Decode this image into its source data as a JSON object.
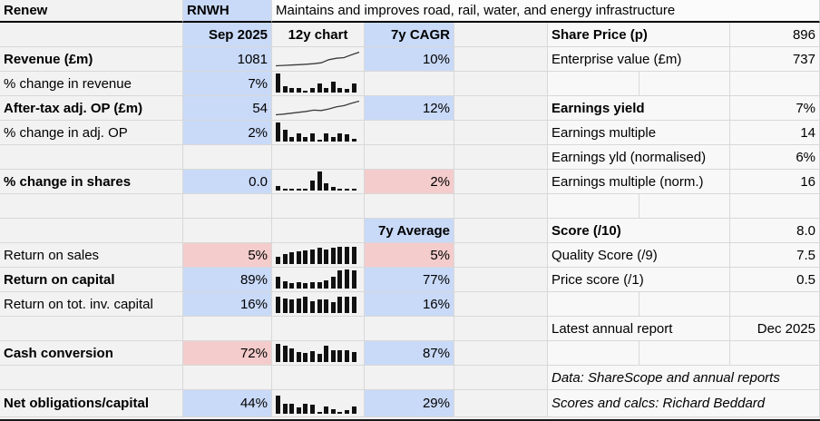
{
  "title_row": {
    "company": "Renew",
    "ticker": "RNWH",
    "description": "Maintains and improves road, rail, water, and energy infrastructure"
  },
  "headers": {
    "period": "Sep 2025",
    "chart_col": "12y chart",
    "cagr_col": "7y CAGR",
    "avg_col": "7y Average"
  },
  "metrics": [
    {
      "label": "Revenue (£m)",
      "value": "1081",
      "cagr": "10%"
    },
    {
      "label": "% change in revenue",
      "value": "7%",
      "cagr": ""
    },
    {
      "label": "After-tax adj. OP (£m)",
      "value": "54",
      "cagr": "12%"
    },
    {
      "label": "% change in adj. OP",
      "value": "2%",
      "cagr": ""
    },
    {
      "label": "% change in shares",
      "value": "0.0",
      "cagr": "2%"
    },
    {
      "label": "Return on sales",
      "value": "5%",
      "avg": "5%"
    },
    {
      "label": "Return on capital",
      "value": "89%",
      "avg": "77%"
    },
    {
      "label": "Return on tot. inv. capital",
      "value": "16%",
      "avg": "16%"
    },
    {
      "label": "Cash conversion",
      "value": "72%",
      "avg": "87%"
    },
    {
      "label": "Net obligations/capital",
      "value": "44%",
      "avg": "29%"
    }
  ],
  "right_panel": {
    "items": [
      {
        "label": "Share Price (p)",
        "value": "896"
      },
      {
        "label": "Enterprise value (£m)",
        "value": "737"
      },
      {
        "label": "Earnings yield",
        "value": "7%"
      },
      {
        "label": "Earnings multiple",
        "value": "14"
      },
      {
        "label": "Earnings yld (normalised)",
        "value": "6%"
      },
      {
        "label": "Earnings multiple (norm.)",
        "value": "16"
      },
      {
        "label": "Score (/10)",
        "value": "8.0"
      },
      {
        "label": "Quality Score (/9)",
        "value": "7.5"
      },
      {
        "label": "Price score (/1)",
        "value": "0.5"
      },
      {
        "label": "Latest annual report",
        "value": "Dec 2025"
      }
    ],
    "notes": [
      "Data: ShareScope and annual reports",
      "Scores and calcs: Richard Beddard"
    ]
  },
  "colors": {
    "highlight_blue": "#c9daf8",
    "highlight_red": "#f4cccc",
    "highlight_yellow": "#ffe599",
    "spark_ink": "#111111"
  },
  "chart_data": {
    "type": "sparklines",
    "period": "12 years",
    "series": [
      {
        "name": "revenue-12y-trend",
        "type": "line",
        "values": [
          10,
          12,
          14,
          16,
          18,
          21,
          26,
          42,
          50,
          53,
          68,
          82
        ]
      },
      {
        "name": "pct-change-revenue",
        "type": "bar",
        "values": [
          100,
          32,
          22,
          24,
          6,
          22,
          48,
          24,
          55,
          22,
          20,
          46
        ]
      },
      {
        "name": "after-tax-adj-op-12y-trend",
        "type": "line",
        "values": [
          6,
          10,
          16,
          22,
          28,
          36,
          34,
          44,
          58,
          66,
          82,
          95
        ]
      },
      {
        "name": "pct-change-adj-op",
        "type": "bar",
        "values": [
          100,
          60,
          25,
          45,
          22,
          45,
          8,
          45,
          25,
          45,
          40,
          15
        ]
      },
      {
        "name": "pct-change-shares",
        "type": "bar",
        "values": [
          22,
          6,
          6,
          6,
          6,
          50,
          100,
          38,
          18,
          2,
          10,
          2
        ]
      },
      {
        "name": "return-on-sales",
        "type": "bar",
        "values": [
          40,
          50,
          60,
          65,
          70,
          75,
          85,
          75,
          85,
          90,
          90,
          90
        ]
      },
      {
        "name": "return-on-capital",
        "type": "bar",
        "values": [
          60,
          38,
          28,
          32,
          28,
          33,
          34,
          42,
          62,
          95,
          100,
          95
        ]
      },
      {
        "name": "return-on-tot-inv-capital",
        "type": "bar",
        "values": [
          85,
          75,
          72,
          78,
          85,
          62,
          70,
          72,
          58,
          85,
          88,
          85
        ]
      },
      {
        "name": "cash-conversion",
        "type": "bar",
        "values": [
          95,
          88,
          72,
          52,
          48,
          55,
          42,
          85,
          62,
          60,
          62,
          52
        ]
      },
      {
        "name": "net-obligations-capital",
        "type": "bar",
        "values": [
          95,
          52,
          50,
          32,
          50,
          48,
          2,
          40,
          22,
          2,
          20,
          40
        ]
      }
    ]
  }
}
